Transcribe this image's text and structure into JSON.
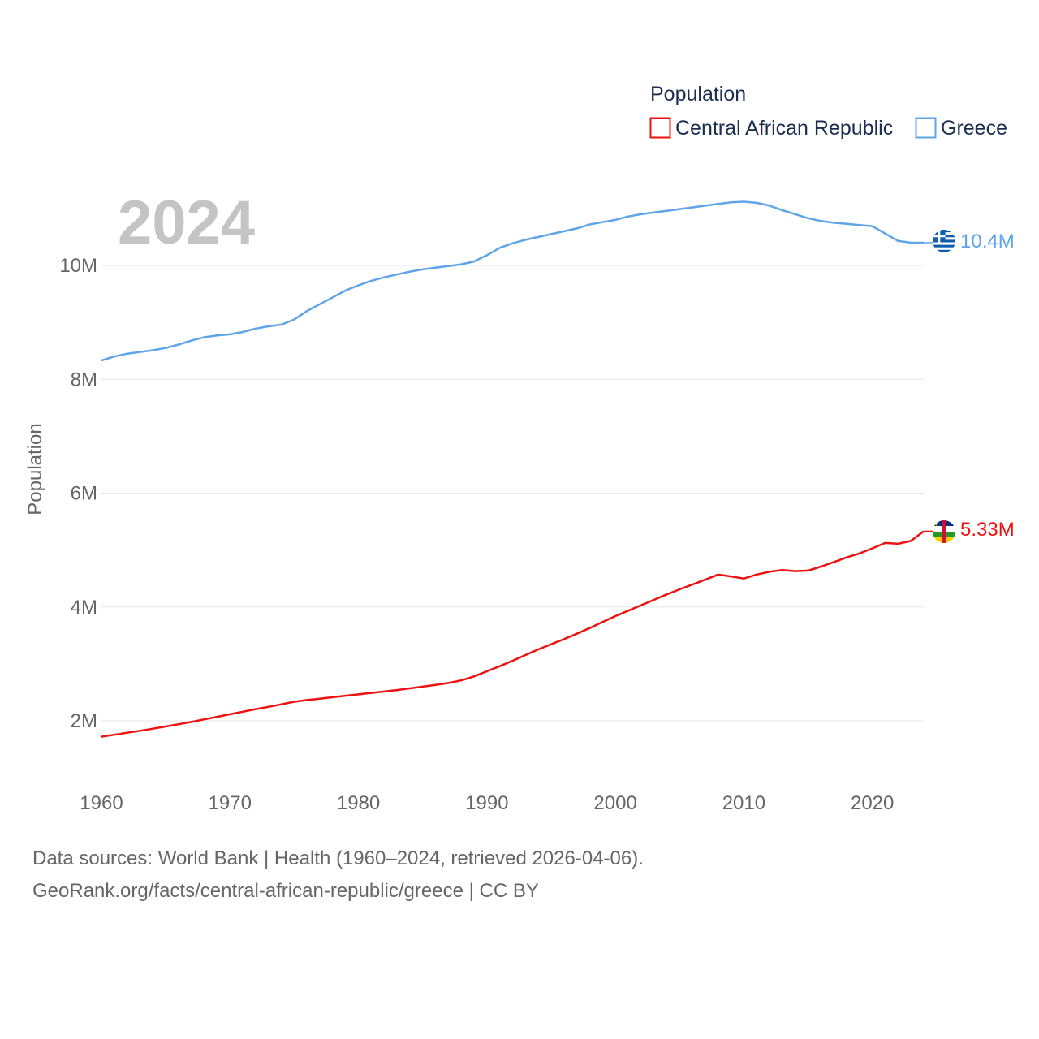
{
  "chart_data": {
    "type": "line",
    "title": "",
    "current_year": "2024",
    "legend_title": "Population",
    "ylabel": "Population",
    "xlabel": "",
    "xlim": [
      1960,
      2024
    ],
    "ylim": [
      1300000,
      11700000
    ],
    "x_ticks": [
      1960,
      1970,
      1980,
      1990,
      2000,
      2010,
      2020
    ],
    "x_tick_labels": [
      "1960",
      "1970",
      "1980",
      "1990",
      "2000",
      "2010",
      "2020"
    ],
    "y_ticks": [
      2000000,
      4000000,
      6000000,
      8000000,
      10000000
    ],
    "y_tick_labels": [
      "2M",
      "4M",
      "6M",
      "8M",
      "10M"
    ],
    "legend_placement": "top-right",
    "x": [
      1960,
      1961,
      1962,
      1963,
      1964,
      1965,
      1966,
      1967,
      1968,
      1969,
      1970,
      1971,
      1972,
      1973,
      1974,
      1975,
      1976,
      1977,
      1978,
      1979,
      1980,
      1981,
      1982,
      1983,
      1984,
      1985,
      1986,
      1987,
      1988,
      1989,
      1990,
      1991,
      1992,
      1993,
      1994,
      1995,
      1996,
      1997,
      1998,
      1999,
      2000,
      2001,
      2002,
      2003,
      2004,
      2005,
      2006,
      2007,
      2008,
      2009,
      2010,
      2011,
      2012,
      2013,
      2014,
      2015,
      2016,
      2017,
      2018,
      2019,
      2020,
      2021,
      2022,
      2023,
      2024
    ],
    "series": [
      {
        "name": "Central African Republic",
        "color": "#ee1111",
        "end_label": "5.33M",
        "flag": "central-african-republic-flag-icon",
        "values": [
          1720000,
          1755000,
          1790000,
          1825000,
          1862000,
          1900000,
          1940000,
          1980000,
          2025000,
          2070000,
          2115000,
          2160000,
          2205000,
          2245000,
          2290000,
          2335000,
          2365000,
          2390000,
          2415000,
          2440000,
          2465000,
          2490000,
          2515000,
          2540000,
          2570000,
          2600000,
          2630000,
          2665000,
          2710000,
          2780000,
          2870000,
          2960000,
          3055000,
          3155000,
          3255000,
          3345000,
          3435000,
          3530000,
          3630000,
          3735000,
          3840000,
          3935000,
          4030000,
          4125000,
          4220000,
          4310000,
          4395000,
          4480000,
          4570000,
          4535000,
          4500000,
          4570000,
          4620000,
          4650000,
          4630000,
          4640000,
          4710000,
          4790000,
          4870000,
          4940000,
          5030000,
          5125000,
          5110000,
          5160000,
          5330000
        ]
      },
      {
        "name": "Greece",
        "color": "#5fa4e6",
        "end_label": "10.4M",
        "flag": "greece-flag-icon",
        "values": [
          8330000,
          8400000,
          8450000,
          8480000,
          8510000,
          8550000,
          8610000,
          8680000,
          8740000,
          8770000,
          8790000,
          8830000,
          8890000,
          8930000,
          8960000,
          9050000,
          9200000,
          9320000,
          9440000,
          9560000,
          9650000,
          9730000,
          9790000,
          9840000,
          9890000,
          9930000,
          9960000,
          9990000,
          10020000,
          10070000,
          10180000,
          10310000,
          10390000,
          10450000,
          10500000,
          10550000,
          10600000,
          10650000,
          10720000,
          10760000,
          10800000,
          10860000,
          10900000,
          10930000,
          10960000,
          10990000,
          11020000,
          11050000,
          11080000,
          11110000,
          11120000,
          11100000,
          11050000,
          10970000,
          10900000,
          10830000,
          10780000,
          10750000,
          10730000,
          10710000,
          10690000,
          10560000,
          10430000,
          10400000,
          10400000
        ]
      }
    ]
  },
  "source": {
    "line1": "Data sources: World Bank | Health (1960–2024, retrieved 2026-04-06).",
    "line2": "GeoRank.org/facts/central-african-republic/greece | CC BY"
  }
}
